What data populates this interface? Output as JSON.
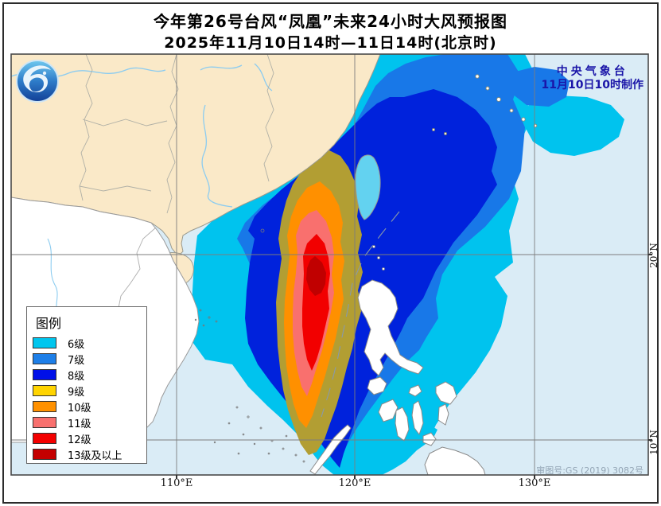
{
  "title": {
    "line1": "今年第26号台风“凤凰”未来24小时大风预报图",
    "line2": "2025年11月10日14时—11日14时(北京时)"
  },
  "maker": {
    "line1": "中央气象台",
    "line2": "11月10日10时制作"
  },
  "survey_note": "审图号:GS (2019) 3082号",
  "legend": {
    "title": "图例",
    "items": [
      {
        "label": "6级",
        "color": "#00C6EE"
      },
      {
        "label": "7级",
        "color": "#1E7FE8"
      },
      {
        "label": "8级",
        "color": "#0010E8"
      },
      {
        "label": "9级",
        "color": "#FFD400"
      },
      {
        "label": "10级",
        "color": "#FF9100"
      },
      {
        "label": "11级",
        "color": "#F8706E"
      },
      {
        "label": "12级",
        "color": "#F30000"
      },
      {
        "label": "13级及以上",
        "color": "#C40000"
      }
    ]
  },
  "axes": {
    "x": [
      {
        "label": "110°E"
      },
      {
        "label": "120°E"
      },
      {
        "label": "130°E"
      }
    ],
    "y": [
      {
        "label": "20°N"
      },
      {
        "label": "10°N"
      }
    ]
  },
  "map_palette": {
    "sea": "#DAECF6",
    "china_land": "#FAE9C8",
    "foreign_land": "#FFFFFF",
    "river": "#8CCCF0",
    "wind_6": "#00C3EE",
    "wind_7": "#1878E8",
    "wind_8": "#0022DC",
    "wind_9_on_map": "#B29E33",
    "wind_10": "#FF9000",
    "wind_11": "#F9706E",
    "wind_12": "#F20000",
    "wind_13_plus": "#C00000",
    "maker_text": "#1A15A8"
  },
  "logo": {
    "name": "cma-logo"
  }
}
